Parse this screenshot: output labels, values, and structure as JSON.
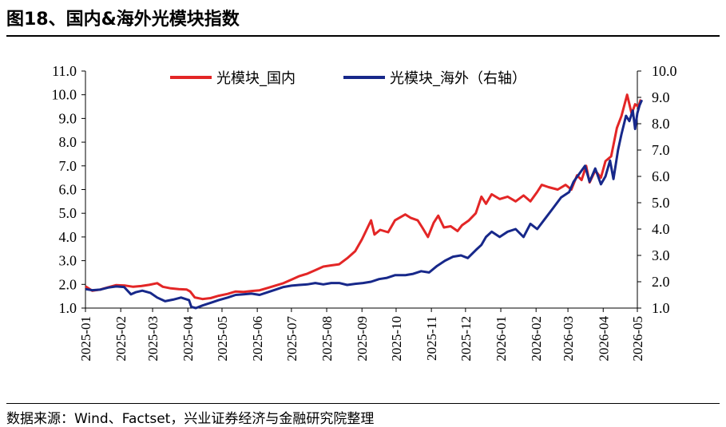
{
  "header": {
    "title": "图18、国内&海外光模块指数"
  },
  "footer": {
    "source": "数据来源：Wind、Factset，兴业证券经济与金融研究院整理"
  },
  "chart_data": {
    "type": "line",
    "title": "图18、国内&海外光模块指数",
    "legend_placement": "top-center",
    "grid": false,
    "x_ticks": [
      "2025-01",
      "2025-02",
      "2025-03",
      "2025-04",
      "2025-05",
      "2025-06",
      "2025-07",
      "2025-08",
      "2025-09",
      "2025-10",
      "2025-11",
      "2025-12",
      "2026-01",
      "2026-02",
      "2026-03",
      "2026-04",
      "2026-05"
    ],
    "y_left": {
      "ticks": [
        "1.0",
        "2.0",
        "3.0",
        "4.0",
        "5.0",
        "6.0",
        "7.0",
        "8.0",
        "9.0",
        "10.0",
        "11.0"
      ],
      "range": [
        1.0,
        11.0
      ]
    },
    "y_right": {
      "ticks": [
        "1.0",
        "2.0",
        "3.0",
        "4.0",
        "5.0",
        "6.0",
        "7.0",
        "8.0",
        "9.0",
        "10.0"
      ],
      "range": [
        1.0,
        10.0
      ]
    },
    "series": [
      {
        "name": "光模块_国内",
        "color": "#e32626",
        "axis": "left",
        "points": [
          [
            "2025-01-01",
            1.92
          ],
          [
            "2025-01-07",
            1.73
          ],
          [
            "2025-01-14",
            1.78
          ],
          [
            "2025-01-21",
            1.88
          ],
          [
            "2025-01-28",
            1.97
          ],
          [
            "2025-02-05",
            1.95
          ],
          [
            "2025-02-12",
            1.9
          ],
          [
            "2025-02-19",
            1.93
          ],
          [
            "2025-02-26",
            1.98
          ],
          [
            "2025-03-05",
            2.05
          ],
          [
            "2025-03-10",
            1.9
          ],
          [
            "2025-03-17",
            1.83
          ],
          [
            "2025-03-24",
            1.8
          ],
          [
            "2025-03-31",
            1.78
          ],
          [
            "2025-04-03",
            1.7
          ],
          [
            "2025-04-07",
            1.45
          ],
          [
            "2025-04-14",
            1.38
          ],
          [
            "2025-04-21",
            1.42
          ],
          [
            "2025-04-28",
            1.52
          ],
          [
            "2025-05-06",
            1.6
          ],
          [
            "2025-05-13",
            1.7
          ],
          [
            "2025-05-20",
            1.68
          ],
          [
            "2025-05-27",
            1.72
          ],
          [
            "2025-06-03",
            1.75
          ],
          [
            "2025-06-10",
            1.85
          ],
          [
            "2025-06-17",
            1.95
          ],
          [
            "2025-06-24",
            2.05
          ],
          [
            "2025-07-01",
            2.2
          ],
          [
            "2025-07-08",
            2.35
          ],
          [
            "2025-07-15",
            2.45
          ],
          [
            "2025-07-22",
            2.6
          ],
          [
            "2025-07-29",
            2.75
          ],
          [
            "2025-08-05",
            2.8
          ],
          [
            "2025-08-12",
            2.85
          ],
          [
            "2025-08-19",
            3.1
          ],
          [
            "2025-08-26",
            3.4
          ],
          [
            "2025-09-01",
            3.9
          ],
          [
            "2025-09-05",
            4.3
          ],
          [
            "2025-09-09",
            4.7
          ],
          [
            "2025-09-12",
            4.1
          ],
          [
            "2025-09-17",
            4.3
          ],
          [
            "2025-09-24",
            4.2
          ],
          [
            "2025-09-30",
            4.7
          ],
          [
            "2025-10-09",
            4.95
          ],
          [
            "2025-10-14",
            4.8
          ],
          [
            "2025-10-20",
            4.7
          ],
          [
            "2025-10-24",
            4.4
          ],
          [
            "2025-10-29",
            4.0
          ],
          [
            "2025-11-03",
            4.6
          ],
          [
            "2025-11-07",
            4.9
          ],
          [
            "2025-11-12",
            4.4
          ],
          [
            "2025-11-18",
            4.45
          ],
          [
            "2025-11-24",
            4.25
          ],
          [
            "2025-11-28",
            4.5
          ],
          [
            "2025-12-04",
            4.7
          ],
          [
            "2025-12-10",
            5.0
          ],
          [
            "2025-12-15",
            5.7
          ],
          [
            "2025-12-19",
            5.4
          ],
          [
            "2025-12-24",
            5.8
          ],
          [
            "2025-12-31",
            5.6
          ],
          [
            "2026-01-07",
            5.7
          ],
          [
            "2026-01-14",
            5.5
          ],
          [
            "2026-01-21",
            5.75
          ],
          [
            "2026-01-27",
            5.5
          ],
          [
            "2026-02-02",
            5.9
          ],
          [
            "2026-02-06",
            6.2
          ],
          [
            "2026-02-12",
            6.1
          ],
          [
            "2026-02-20",
            6.0
          ],
          [
            "2026-02-27",
            6.2
          ],
          [
            "2026-03-04",
            6.0
          ],
          [
            "2026-03-09",
            6.6
          ],
          [
            "2026-03-13",
            6.4
          ],
          [
            "2026-03-17",
            7.0
          ],
          [
            "2026-03-20",
            6.3
          ],
          [
            "2026-03-25",
            6.8
          ],
          [
            "2026-03-30",
            6.5
          ],
          [
            "2026-04-03",
            7.2
          ],
          [
            "2026-04-08",
            7.4
          ],
          [
            "2026-04-13",
            8.6
          ],
          [
            "2026-04-17",
            9.1
          ],
          [
            "2026-04-22",
            10.0
          ],
          [
            "2026-04-26",
            9.2
          ],
          [
            "2026-04-29",
            9.6
          ],
          [
            "2026-05-02",
            9.5
          ],
          [
            "2026-05-04",
            9.8
          ]
        ]
      },
      {
        "name": "光模块_海外（右轴）",
        "color": "#17288a",
        "axis": "right",
        "points": [
          [
            "2025-01-01",
            1.72
          ],
          [
            "2025-01-07",
            1.68
          ],
          [
            "2025-01-14",
            1.7
          ],
          [
            "2025-01-21",
            1.78
          ],
          [
            "2025-01-28",
            1.82
          ],
          [
            "2025-02-04",
            1.8
          ],
          [
            "2025-02-10",
            1.52
          ],
          [
            "2025-02-14",
            1.6
          ],
          [
            "2025-02-20",
            1.66
          ],
          [
            "2025-02-27",
            1.58
          ],
          [
            "2025-03-05",
            1.4
          ],
          [
            "2025-03-12",
            1.26
          ],
          [
            "2025-03-19",
            1.32
          ],
          [
            "2025-03-26",
            1.4
          ],
          [
            "2025-04-02",
            1.3
          ],
          [
            "2025-04-04",
            1.05
          ],
          [
            "2025-04-08",
            1.0
          ],
          [
            "2025-04-14",
            1.1
          ],
          [
            "2025-04-21",
            1.2
          ],
          [
            "2025-04-28",
            1.3
          ],
          [
            "2025-05-06",
            1.4
          ],
          [
            "2025-05-13",
            1.5
          ],
          [
            "2025-05-20",
            1.52
          ],
          [
            "2025-05-27",
            1.55
          ],
          [
            "2025-06-03",
            1.5
          ],
          [
            "2025-06-10",
            1.6
          ],
          [
            "2025-06-17",
            1.7
          ],
          [
            "2025-06-24",
            1.8
          ],
          [
            "2025-07-01",
            1.85
          ],
          [
            "2025-07-08",
            1.88
          ],
          [
            "2025-07-15",
            1.9
          ],
          [
            "2025-07-22",
            1.95
          ],
          [
            "2025-07-29",
            1.9
          ],
          [
            "2025-08-05",
            1.95
          ],
          [
            "2025-08-12",
            1.95
          ],
          [
            "2025-08-19",
            1.88
          ],
          [
            "2025-08-26",
            1.92
          ],
          [
            "2025-09-02",
            1.95
          ],
          [
            "2025-09-09",
            2.0
          ],
          [
            "2025-09-16",
            2.1
          ],
          [
            "2025-09-23",
            2.15
          ],
          [
            "2025-09-30",
            2.25
          ],
          [
            "2025-10-09",
            2.25
          ],
          [
            "2025-10-16",
            2.3
          ],
          [
            "2025-10-23",
            2.4
          ],
          [
            "2025-10-30",
            2.35
          ],
          [
            "2025-11-06",
            2.6
          ],
          [
            "2025-11-13",
            2.8
          ],
          [
            "2025-11-20",
            2.95
          ],
          [
            "2025-11-27",
            3.0
          ],
          [
            "2025-12-03",
            2.9
          ],
          [
            "2025-12-10",
            3.2
          ],
          [
            "2025-12-15",
            3.4
          ],
          [
            "2025-12-19",
            3.7
          ],
          [
            "2025-12-24",
            3.9
          ],
          [
            "2025-12-31",
            3.7
          ],
          [
            "2026-01-07",
            3.9
          ],
          [
            "2026-01-14",
            4.0
          ],
          [
            "2026-01-21",
            3.7
          ],
          [
            "2026-01-27",
            4.2
          ],
          [
            "2026-02-02",
            4.0
          ],
          [
            "2026-02-09",
            4.4
          ],
          [
            "2026-02-16",
            4.8
          ],
          [
            "2026-02-23",
            5.2
          ],
          [
            "2026-03-02",
            5.4
          ],
          [
            "2026-03-06",
            5.8
          ],
          [
            "2026-03-11",
            6.1
          ],
          [
            "2026-03-16",
            6.4
          ],
          [
            "2026-03-20",
            5.8
          ],
          [
            "2026-03-25",
            6.3
          ],
          [
            "2026-03-30",
            5.7
          ],
          [
            "2026-04-03",
            6.0
          ],
          [
            "2026-04-07",
            6.6
          ],
          [
            "2026-04-10",
            5.9
          ],
          [
            "2026-04-14",
            7.0
          ],
          [
            "2026-04-17",
            7.6
          ],
          [
            "2026-04-21",
            8.3
          ],
          [
            "2026-04-24",
            8.1
          ],
          [
            "2026-04-27",
            8.5
          ],
          [
            "2026-04-29",
            7.8
          ],
          [
            "2026-05-01",
            8.4
          ],
          [
            "2026-05-03",
            8.7
          ],
          [
            "2026-05-05",
            8.9
          ]
        ]
      }
    ]
  }
}
